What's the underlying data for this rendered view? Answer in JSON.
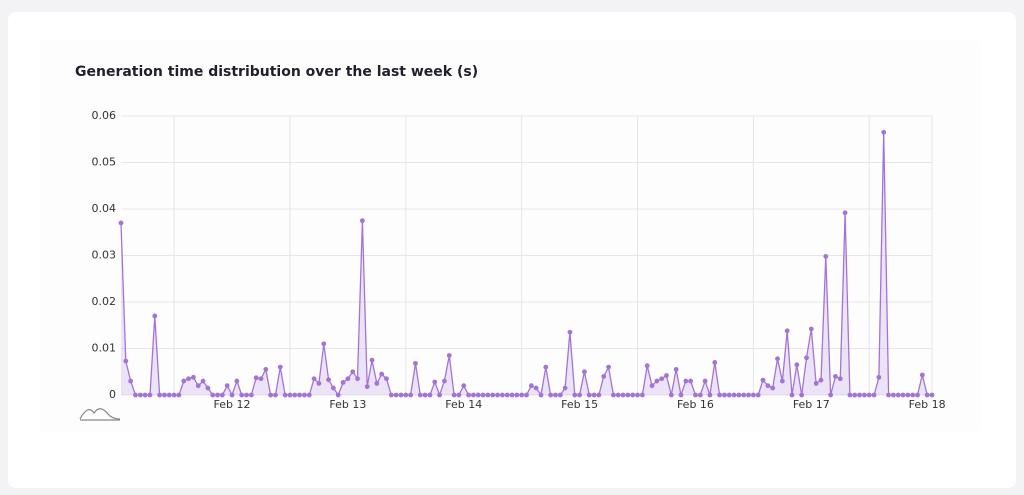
{
  "chart_data": {
    "type": "line",
    "title": "Generation time distribution over the last week (s)",
    "color": "#a374d6",
    "grid": true,
    "ylim": [
      0,
      0.06
    ],
    "yticks": [
      0,
      0.01,
      0.02,
      0.03,
      0.04,
      0.05,
      0.06
    ],
    "categories": [
      null,
      null,
      null,
      null,
      null,
      null,
      null,
      null,
      null,
      null,
      null,
      null,
      null,
      null,
      null,
      null,
      null,
      null,
      null,
      null,
      null,
      null,
      null,
      "Feb 12",
      null,
      null,
      null,
      null,
      null,
      null,
      null,
      null,
      null,
      null,
      null,
      null,
      null,
      null,
      null,
      null,
      null,
      null,
      null,
      null,
      null,
      null,
      null,
      "Feb 13",
      null,
      null,
      null,
      null,
      null,
      null,
      null,
      null,
      null,
      null,
      null,
      null,
      null,
      null,
      null,
      null,
      null,
      null,
      null,
      null,
      null,
      null,
      null,
      "Feb 14",
      null,
      null,
      null,
      null,
      null,
      null,
      null,
      null,
      null,
      null,
      null,
      null,
      null,
      null,
      null,
      null,
      null,
      null,
      null,
      null,
      null,
      null,
      null,
      "Feb 15",
      null,
      null,
      null,
      null,
      null,
      null,
      null,
      null,
      null,
      null,
      null,
      null,
      null,
      null,
      null,
      null,
      null,
      null,
      null,
      null,
      null,
      null,
      null,
      "Feb 16",
      null,
      null,
      null,
      null,
      null,
      null,
      null,
      null,
      null,
      null,
      null,
      null,
      null,
      null,
      null,
      null,
      null,
      null,
      null,
      null,
      null,
      null,
      null,
      "Feb 17",
      null,
      null,
      null,
      null,
      null,
      null,
      null,
      null,
      null,
      null,
      null,
      null,
      null,
      null,
      null,
      null,
      null,
      null,
      null,
      null,
      null,
      null,
      null,
      "Feb 18",
      null
    ],
    "values": [
      0.037,
      0.0073,
      0.003,
      0,
      0,
      0,
      0,
      0.017,
      0,
      0,
      0,
      0,
      0,
      0.003,
      0.0035,
      0.0038,
      0.002,
      0.003,
      0.0015,
      0,
      0,
      0,
      0.002,
      0,
      0.003,
      0,
      0,
      0,
      0.0037,
      0.0035,
      0.0055,
      0,
      0,
      0.006,
      0,
      0,
      0,
      0,
      0,
      0,
      0.0035,
      0.0025,
      0.011,
      0.0033,
      0.0015,
      0,
      0.0027,
      0.0035,
      0.005,
      0.0035,
      0.0375,
      0.0018,
      0.0075,
      0.0025,
      0.0045,
      0.0035,
      0,
      0,
      0,
      0,
      0,
      0.0068,
      0,
      0,
      0,
      0.0028,
      0,
      0.003,
      0.0085,
      0,
      0,
      0.002,
      0,
      0,
      0,
      0,
      0,
      0,
      0,
      0,
      0,
      0,
      0,
      0,
      0,
      0.002,
      0.0015,
      0,
      0.006,
      0,
      0,
      0,
      0.0015,
      0.0135,
      0,
      0,
      0.005,
      0,
      0,
      0,
      0.004,
      0.006,
      0,
      0,
      0,
      0,
      0,
      0,
      0,
      0.0063,
      0.002,
      0.003,
      0.0035,
      0.0042,
      0,
      0.0055,
      0,
      0.003,
      0.003,
      0,
      0,
      0.003,
      0,
      0.007,
      0,
      0,
      0,
      0,
      0,
      0,
      0,
      0,
      0,
      0.0032,
      0.002,
      0.0015,
      0.0078,
      0.003,
      0.0138,
      0,
      0.0065,
      0,
      0.008,
      0.0142,
      0.0025,
      0.0032,
      0.0298,
      0,
      0.004,
      0.0035,
      0.0392,
      0,
      0,
      0,
      0,
      0,
      0,
      0.0038,
      0.0565,
      0,
      0,
      0,
      0,
      0,
      0,
      0,
      0.0043,
      0,
      0
    ]
  }
}
